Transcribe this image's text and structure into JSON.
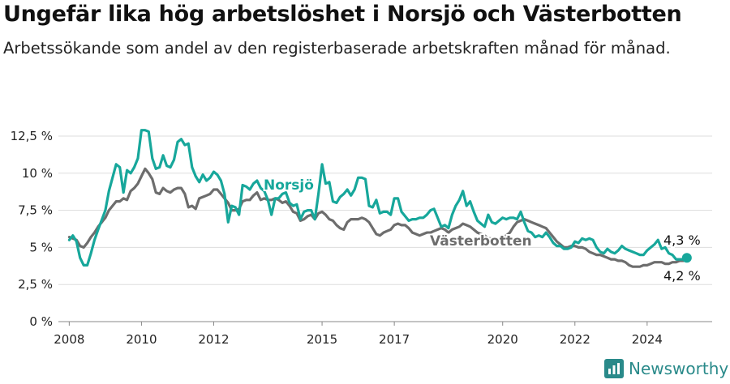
{
  "title": "Ungefär lika hög arbetslöshet i Norsjö och Västerbotten",
  "subtitle": "Arbetssökande som andel av den registerbaserade arbetskraften månad för månad.",
  "brand": "Newsworthy",
  "colors": {
    "norsjo": "#17a79b",
    "vasterbotten": "#6d6d6d",
    "brand": "#2a8a8a",
    "grid": "#dddddd"
  },
  "chart_data": {
    "type": "line",
    "title": "Ungefär lika hög arbetslöshet i Norsjö och Västerbotten",
    "xlabel": "",
    "ylabel": "",
    "ylim": [
      0,
      12.5
    ],
    "xlim": [
      2007.7,
      2025.8
    ],
    "y_ticks": [
      0,
      2.5,
      5,
      7.5,
      10,
      12.5
    ],
    "y_tick_labels": [
      "0 %",
      "2,5 %",
      "5 %",
      "7,5 %",
      "10 %",
      "12,5 %"
    ],
    "x_ticks": [
      2008,
      2010,
      2012,
      2015,
      2017,
      2020,
      2022,
      2024
    ],
    "x_tick_labels": [
      "2008",
      "2010",
      "2012",
      "2015",
      "2017",
      "2020",
      "2022",
      "2024"
    ],
    "series": [
      {
        "name": "Norsjö",
        "label": "Norsjö",
        "end_label": "4,3 %",
        "x": [
          2008.0,
          2008.1,
          2008.2,
          2008.3,
          2008.4,
          2008.5,
          2008.6,
          2008.7,
          2008.8,
          2009.0,
          2009.1,
          2009.3,
          2009.4,
          2009.5,
          2009.6,
          2009.7,
          2009.8,
          2009.9,
          2010.0,
          2010.1,
          2010.2,
          2010.3,
          2010.4,
          2010.5,
          2010.6,
          2010.7,
          2010.8,
          2010.9,
          2011.0,
          2011.1,
          2011.2,
          2011.3,
          2011.4,
          2011.5,
          2011.6,
          2011.7,
          2011.8,
          2011.9,
          2012.0,
          2012.1,
          2012.2,
          2012.3,
          2012.4,
          2012.5,
          2012.6,
          2012.7,
          2012.8,
          2012.9,
          2013.0,
          2013.1,
          2013.2,
          2013.3,
          2013.4,
          2013.5,
          2013.6,
          2013.7,
          2013.8,
          2013.9,
          2014.0,
          2014.1,
          2014.2,
          2014.3,
          2014.4,
          2014.5,
          2014.6,
          2014.7,
          2014.8,
          2014.9,
          2015.0,
          2015.1,
          2015.2,
          2015.3,
          2015.4,
          2015.5,
          2015.6,
          2015.7,
          2015.8,
          2015.9,
          2016.0,
          2016.1,
          2016.2,
          2016.3,
          2016.4,
          2016.5,
          2016.6,
          2016.7,
          2016.8,
          2016.9,
          2017.0,
          2017.1,
          2017.2,
          2017.3,
          2017.4,
          2017.5,
          2017.6,
          2017.7,
          2017.8,
          2017.9,
          2018.0,
          2018.1,
          2018.2,
          2018.3,
          2018.4,
          2018.5,
          2018.6,
          2018.7,
          2018.8,
          2018.9,
          2019.0,
          2019.1,
          2019.2,
          2019.3,
          2019.4,
          2019.5,
          2019.6,
          2019.7,
          2019.8,
          2019.9,
          2020.0,
          2020.1,
          2020.2,
          2020.3,
          2020.4,
          2020.5,
          2020.6,
          2020.7,
          2020.8,
          2020.9,
          2021.0,
          2021.1,
          2021.2,
          2021.3,
          2021.4,
          2021.5,
          2021.6,
          2021.7,
          2021.8,
          2021.9,
          2022.0,
          2022.1,
          2022.2,
          2022.3,
          2022.4,
          2022.5,
          2022.6,
          2022.7,
          2022.8,
          2022.9,
          2023.0,
          2023.1,
          2023.2,
          2023.3,
          2023.4,
          2023.5,
          2023.6,
          2023.7,
          2023.8,
          2023.9,
          2024.0,
          2024.1,
          2024.2,
          2024.3,
          2024.4,
          2024.5,
          2024.6,
          2024.7,
          2024.8,
          2024.9,
          2025.0,
          2025.1
        ],
        "values": [
          5.5,
          5.8,
          5.4,
          4.3,
          3.8,
          3.8,
          4.6,
          5.5,
          6.2,
          7.5,
          8.8,
          10.6,
          10.4,
          8.7,
          10.2,
          10.0,
          10.4,
          11.0,
          12.9,
          12.9,
          12.8,
          11.0,
          10.3,
          10.4,
          11.2,
          10.5,
          10.4,
          10.9,
          12.1,
          12.3,
          11.9,
          12.0,
          10.4,
          9.8,
          9.4,
          9.9,
          9.5,
          9.7,
          10.1,
          9.9,
          9.5,
          8.6,
          6.7,
          7.8,
          7.7,
          7.2,
          9.2,
          9.1,
          8.9,
          9.3,
          9.5,
          9.0,
          8.8,
          8.2,
          7.2,
          8.3,
          8.3,
          8.6,
          8.7,
          8.0,
          7.8,
          7.9,
          6.9,
          7.4,
          7.5,
          7.5,
          6.9,
          8.6,
          10.6,
          9.3,
          9.4,
          8.1,
          8.0,
          8.4,
          8.6,
          8.9,
          8.5,
          8.9,
          9.7,
          9.7,
          9.6,
          7.8,
          7.7,
          8.2,
          7.3,
          7.4,
          7.4,
          7.2,
          8.3,
          8.3,
          7.4,
          7.1,
          6.8,
          6.9,
          6.9,
          7.0,
          7.0,
          7.2,
          7.5,
          7.6,
          7.0,
          6.4,
          6.5,
          6.3,
          7.2,
          7.8,
          8.2,
          8.8,
          7.8,
          8.1,
          7.4,
          6.8,
          6.6,
          6.4,
          7.2,
          6.7,
          6.6,
          6.8,
          7.0,
          6.9,
          7.0,
          7.0,
          6.9,
          7.4,
          6.7,
          6.1,
          6.0,
          5.7,
          5.8,
          5.7,
          6.0,
          5.7,
          5.3,
          5.1,
          5.1,
          4.9,
          4.9,
          5.0,
          5.4,
          5.3,
          5.6,
          5.5,
          5.6,
          5.5,
          5.0,
          4.7,
          4.6,
          4.9,
          4.7,
          4.6,
          4.8,
          5.1,
          4.9,
          4.8,
          4.7,
          4.6,
          4.5,
          4.5,
          4.8,
          5.0,
          5.2,
          5.5,
          4.9,
          5.0,
          4.6,
          4.5,
          4.2,
          4.2,
          4.2,
          4.3
        ]
      },
      {
        "name": "Västerbotten",
        "label": "Västerbotten",
        "end_label": "4,2 %",
        "x": [
          2008.0,
          2008.1,
          2008.2,
          2008.3,
          2008.4,
          2008.5,
          2008.6,
          2008.7,
          2008.8,
          2009.0,
          2009.1,
          2009.3,
          2009.4,
          2009.5,
          2009.6,
          2009.7,
          2009.8,
          2009.9,
          2010.0,
          2010.1,
          2010.2,
          2010.3,
          2010.4,
          2010.5,
          2010.6,
          2010.7,
          2010.8,
          2010.9,
          2011.0,
          2011.1,
          2011.2,
          2011.3,
          2011.4,
          2011.5,
          2011.6,
          2011.7,
          2011.8,
          2011.9,
          2012.0,
          2012.1,
          2012.2,
          2012.3,
          2012.4,
          2012.5,
          2012.6,
          2012.7,
          2012.8,
          2012.9,
          2013.0,
          2013.1,
          2013.2,
          2013.3,
          2013.4,
          2013.5,
          2013.6,
          2013.7,
          2013.8,
          2013.9,
          2014.0,
          2014.1,
          2014.2,
          2014.3,
          2014.4,
          2014.5,
          2014.6,
          2014.7,
          2014.8,
          2014.9,
          2015.0,
          2015.1,
          2015.2,
          2015.3,
          2015.4,
          2015.5,
          2015.6,
          2015.7,
          2015.8,
          2015.9,
          2016.0,
          2016.1,
          2016.2,
          2016.3,
          2016.4,
          2016.5,
          2016.6,
          2016.7,
          2016.8,
          2016.9,
          2017.0,
          2017.1,
          2017.2,
          2017.3,
          2017.4,
          2017.5,
          2017.6,
          2017.7,
          2017.8,
          2017.9,
          2018.0,
          2018.1,
          2018.2,
          2018.3,
          2018.4,
          2018.5,
          2018.6,
          2018.7,
          2018.8,
          2018.9,
          2019.0,
          2019.1,
          2019.2,
          2019.3,
          2019.4,
          2019.5,
          2019.6,
          2019.7,
          2019.8,
          2019.9,
          2020.0,
          2020.1,
          2020.2,
          2020.3,
          2020.4,
          2020.5,
          2020.6,
          2020.7,
          2020.8,
          2020.9,
          2021.0,
          2021.1,
          2021.2,
          2021.3,
          2021.4,
          2021.5,
          2021.6,
          2021.7,
          2021.8,
          2021.9,
          2022.0,
          2022.1,
          2022.2,
          2022.3,
          2022.4,
          2022.5,
          2022.6,
          2022.7,
          2022.8,
          2022.9,
          2023.0,
          2023.1,
          2023.2,
          2023.3,
          2023.4,
          2023.5,
          2023.6,
          2023.7,
          2023.8,
          2023.9,
          2024.0,
          2024.1,
          2024.2,
          2024.3,
          2024.4,
          2024.5,
          2024.6,
          2024.7,
          2024.8,
          2024.9,
          2025.0,
          2025.1
        ],
        "values": [
          5.7,
          5.6,
          5.5,
          5.1,
          5.0,
          5.3,
          5.7,
          6.0,
          6.4,
          7.0,
          7.5,
          8.1,
          8.1,
          8.3,
          8.2,
          8.8,
          9.0,
          9.3,
          9.8,
          10.3,
          10.0,
          9.6,
          8.7,
          8.6,
          9.0,
          8.8,
          8.7,
          8.9,
          9.0,
          9.0,
          8.6,
          7.7,
          7.8,
          7.6,
          8.3,
          8.4,
          8.5,
          8.6,
          8.9,
          8.9,
          8.6,
          8.3,
          8.0,
          7.5,
          7.5,
          7.6,
          8.1,
          8.2,
          8.2,
          8.5,
          8.7,
          8.2,
          8.3,
          8.2,
          8.2,
          8.3,
          8.2,
          8.0,
          8.1,
          7.8,
          7.4,
          7.3,
          6.8,
          6.9,
          7.1,
          7.2,
          6.9,
          7.3,
          7.4,
          7.2,
          6.9,
          6.8,
          6.5,
          6.3,
          6.2,
          6.7,
          6.9,
          6.9,
          6.9,
          7.0,
          6.9,
          6.7,
          6.3,
          5.9,
          5.8,
          6.0,
          6.1,
          6.2,
          6.5,
          6.6,
          6.5,
          6.5,
          6.3,
          6.0,
          5.9,
          5.8,
          5.9,
          6.0,
          6.0,
          6.1,
          6.2,
          6.3,
          6.2,
          6.0,
          6.2,
          6.3,
          6.4,
          6.6,
          6.5,
          6.4,
          6.2,
          6.0,
          5.9,
          5.8,
          5.6,
          5.6,
          5.5,
          5.6,
          5.7,
          5.8,
          6.0,
          6.4,
          6.7,
          6.8,
          6.9,
          6.8,
          6.7,
          6.6,
          6.5,
          6.4,
          6.3,
          6.0,
          5.7,
          5.4,
          5.2,
          5.0,
          5.0,
          5.1,
          5.1,
          5.0,
          5.0,
          4.9,
          4.7,
          4.6,
          4.5,
          4.5,
          4.4,
          4.3,
          4.2,
          4.2,
          4.1,
          4.1,
          4.0,
          3.8,
          3.7,
          3.7,
          3.7,
          3.8,
          3.8,
          3.9,
          4.0,
          4.0,
          4.0,
          3.9,
          3.9,
          4.0,
          4.0,
          4.1,
          4.1,
          4.2
        ]
      }
    ]
  }
}
